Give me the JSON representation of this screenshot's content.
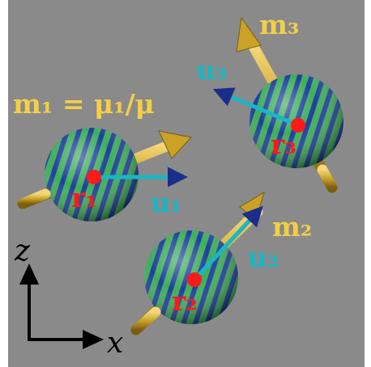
{
  "colors": {
    "background": "#8a8a8a",
    "moment_arrow": "#c9a227",
    "sphere_green": "#3fae5a",
    "sphere_blue": "#1f3f9e",
    "position_dot": "#ff1a1a",
    "orientation_arrow": "#19b6c4",
    "axes": "#000000"
  },
  "labels": {
    "m1_eq": "m₁ = μ₁/μ",
    "m2": "m₂",
    "m3": "m₃",
    "u1": "u₁",
    "u2": "u₂",
    "u3": "u₃",
    "r1": "r₁",
    "r2": "r₂",
    "r3": "r₃",
    "axis_x": "x",
    "axis_z": "z"
  }
}
